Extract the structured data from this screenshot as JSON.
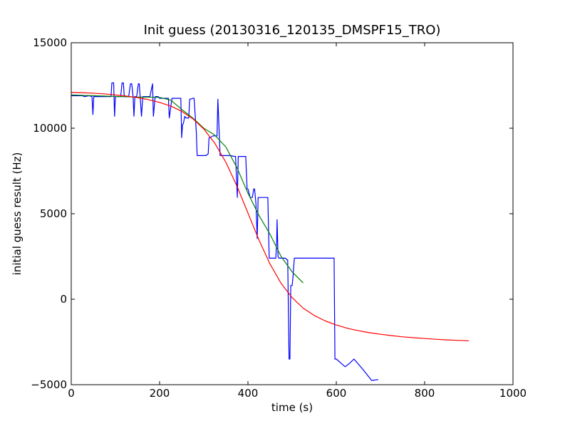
{
  "chart_data": {
    "type": "line",
    "title": "Init guess (20130316_120135_DMSPF15_TRO)",
    "xlabel": "time (s)",
    "ylabel": "initial guess result (Hz)",
    "xlim": [
      0,
      1000
    ],
    "ylim": [
      -5000,
      15000
    ],
    "xticks": [
      0,
      200,
      400,
      600,
      800,
      1000
    ],
    "yticks": [
      -5000,
      0,
      5000,
      10000,
      15000
    ],
    "xtick_labels": [
      "0",
      "200",
      "400",
      "600",
      "800",
      "1000"
    ],
    "ytick_labels": [
      "−5000",
      "0",
      "5000",
      "10000",
      "15000"
    ],
    "grid": false,
    "legend": false,
    "series": [
      {
        "color": "#0000ff",
        "x": [
          0,
          15,
          25,
          30,
          40,
          47,
          49,
          51,
          60,
          70,
          80,
          90,
          92,
          96,
          98,
          100,
          112,
          115,
          118,
          120,
          130,
          134,
          137,
          140,
          142,
          144,
          148,
          152,
          154,
          156,
          159,
          162,
          165,
          168,
          178,
          184,
          186,
          190,
          197,
          200,
          210,
          220,
          222,
          228,
          238,
          248,
          250,
          252,
          254,
          257,
          260,
          266,
          268,
          270,
          275,
          278,
          283,
          285,
          295,
          305,
          310,
          312,
          315,
          320,
          330,
          332,
          335,
          337,
          340,
          350,
          360,
          370,
          372,
          374,
          376,
          378,
          380,
          385,
          390,
          395,
          398,
          400,
          405,
          410,
          413,
          415,
          418,
          421,
          423,
          425,
          428,
          430,
          440,
          445,
          448,
          450,
          460,
          463,
          465,
          466,
          468,
          470,
          475,
          480,
          485,
          488,
          490,
          493,
          495,
          497,
          500,
          502,
          505,
          508,
          510,
          520,
          530,
          540,
          550,
          560,
          570,
          580,
          590,
          593,
          595,
          597,
          600,
          620,
          630,
          640,
          660,
          680,
          695
        ],
        "y": [
          11900,
          11900,
          11900,
          11850,
          11900,
          11850,
          10800,
          11850,
          11850,
          11850,
          11850,
          11850,
          12650,
          12650,
          10700,
          11850,
          11850,
          12650,
          12650,
          11850,
          11850,
          12600,
          12600,
          11850,
          10700,
          11850,
          11850,
          12600,
          12600,
          11850,
          10700,
          11850,
          11850,
          11850,
          11850,
          12600,
          10700,
          11850,
          11850,
          11750,
          11750,
          11750,
          10600,
          11750,
          11750,
          11750,
          9450,
          10200,
          10300,
          10700,
          10600,
          10600,
          11700,
          11700,
          11750,
          11750,
          9800,
          8400,
          8400,
          8400,
          8500,
          9450,
          9450,
          9550,
          9550,
          11700,
          9700,
          8400,
          8400,
          8400,
          8400,
          8350,
          8350,
          7100,
          5950,
          8350,
          8350,
          8350,
          8350,
          8350,
          6450,
          6450,
          5950,
          5950,
          6450,
          6450,
          5600,
          3550,
          5950,
          5950,
          5950,
          5950,
          5950,
          5950,
          2400,
          2400,
          2400,
          2400,
          3400,
          4650,
          2500,
          2400,
          2400,
          2400,
          2400,
          2300,
          2300,
          -3500,
          -3500,
          800,
          800,
          1300,
          2400,
          2400,
          2400,
          2400,
          2400,
          2400,
          2400,
          2400,
          2400,
          2400,
          2400,
          2400,
          2400,
          -3500,
          -3500,
          -3950,
          -3750,
          -3500,
          -4100,
          -4750,
          -4700
        ]
      },
      {
        "color": "#008000",
        "x": [
          0,
          25,
          50,
          75,
          100,
          125,
          150,
          175,
          200,
          225,
          250,
          275,
          300,
          325,
          350,
          375,
          400,
          425,
          450,
          475,
          500,
          525
        ],
        "y": [
          11950,
          11920,
          11900,
          11880,
          11860,
          11840,
          11820,
          11820,
          11800,
          11650,
          11100,
          10600,
          10000,
          9600,
          8900,
          7700,
          6200,
          4900,
          3800,
          2500,
          1600,
          950
        ]
      },
      {
        "color": "#ff0000",
        "x": [
          0,
          25,
          50,
          75,
          100,
          125,
          150,
          175,
          200,
          225,
          250,
          275,
          300,
          325,
          350,
          375,
          400,
          425,
          450,
          475,
          500,
          525,
          550,
          575,
          600,
          625,
          650,
          675,
          700,
          725,
          750,
          775,
          800,
          825,
          850,
          875,
          900
        ],
        "y": [
          12100,
          12080,
          12050,
          12010,
          11950,
          11880,
          11790,
          11670,
          11510,
          11300,
          10990,
          10560,
          9960,
          9120,
          8010,
          6620,
          5040,
          3460,
          2060,
          930,
          90,
          -520,
          -950,
          -1270,
          -1510,
          -1700,
          -1840,
          -1960,
          -2050,
          -2130,
          -2200,
          -2250,
          -2300,
          -2340,
          -2380,
          -2410,
          -2430
        ]
      }
    ]
  }
}
